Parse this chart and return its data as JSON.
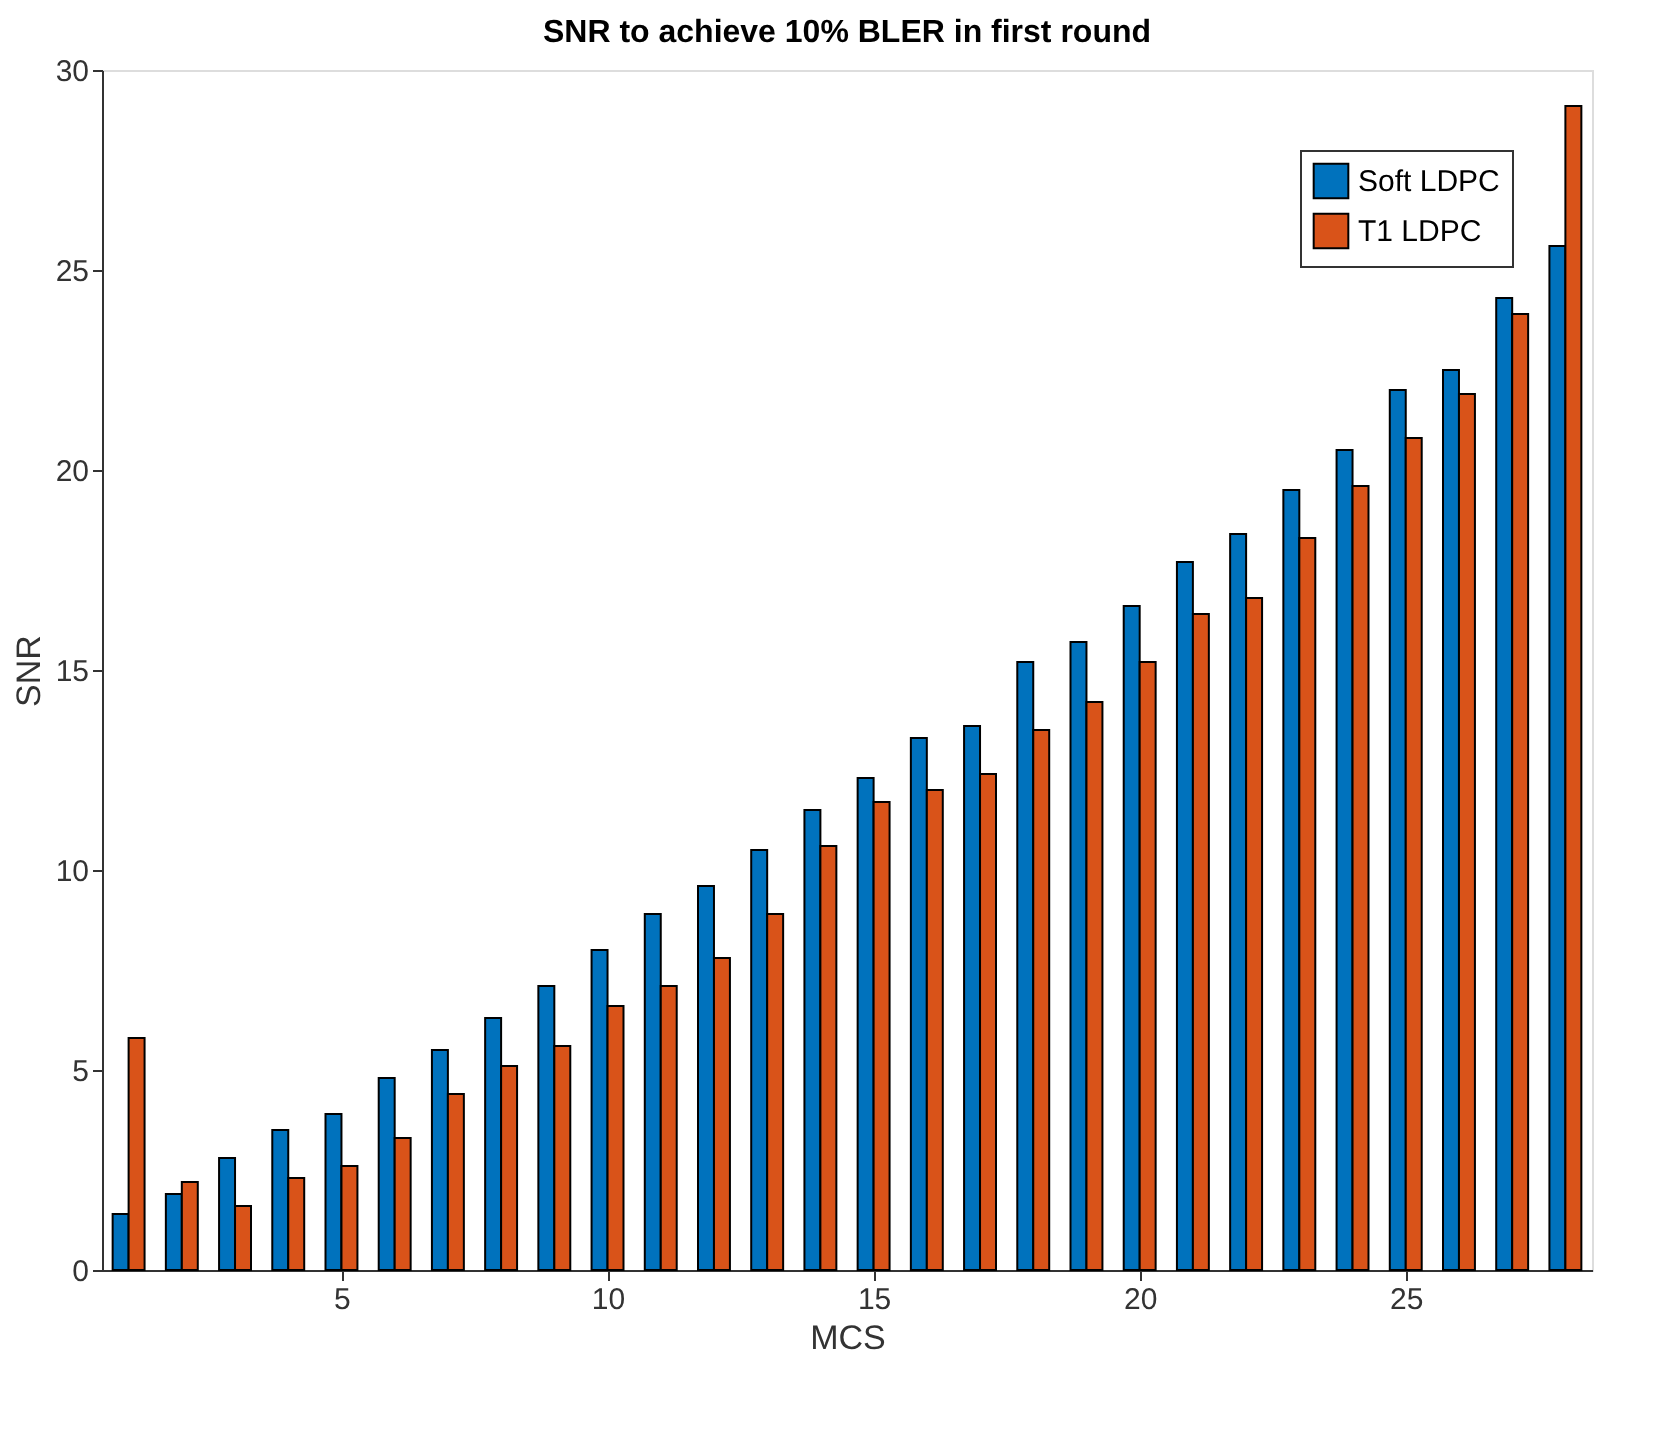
{
  "chart_data": {
    "type": "bar",
    "title": "SNR to achieve 10% BLER in first round",
    "xlabel": "MCS",
    "ylabel": "SNR",
    "x": [
      1,
      2,
      3,
      4,
      5,
      6,
      7,
      8,
      9,
      10,
      11,
      12,
      13,
      14,
      15,
      16,
      17,
      18,
      19,
      20,
      21,
      22,
      23,
      24,
      25,
      26,
      27,
      28
    ],
    "series": [
      {
        "name": "Soft LDPC",
        "color": "#0072bd",
        "values": [
          1.4,
          1.9,
          2.8,
          3.5,
          3.9,
          4.8,
          5.5,
          6.3,
          7.1,
          8.0,
          8.9,
          9.6,
          10.5,
          11.5,
          12.3,
          13.3,
          13.6,
          15.2,
          15.7,
          16.6,
          17.7,
          18.4,
          19.5,
          20.5,
          22.0,
          22.5,
          24.3,
          25.6
        ]
      },
      {
        "name": "T1 LDPC",
        "color": "#d95319",
        "values": [
          5.8,
          2.2,
          1.6,
          2.3,
          2.6,
          3.3,
          4.4,
          5.1,
          5.6,
          6.6,
          7.1,
          7.8,
          8.9,
          10.6,
          11.7,
          12.0,
          12.4,
          13.5,
          14.2,
          15.2,
          16.4,
          16.8,
          18.3,
          19.6,
          20.8,
          21.9,
          23.9,
          29.1
        ]
      }
    ],
    "xlim": [
      0.5,
      28.5
    ],
    "xticks": [
      5,
      10,
      15,
      20,
      25
    ],
    "ylim": [
      0,
      30
    ],
    "yticks": [
      0,
      5,
      10,
      15,
      20,
      25,
      30
    ],
    "grid": false,
    "legend": "top right"
  }
}
